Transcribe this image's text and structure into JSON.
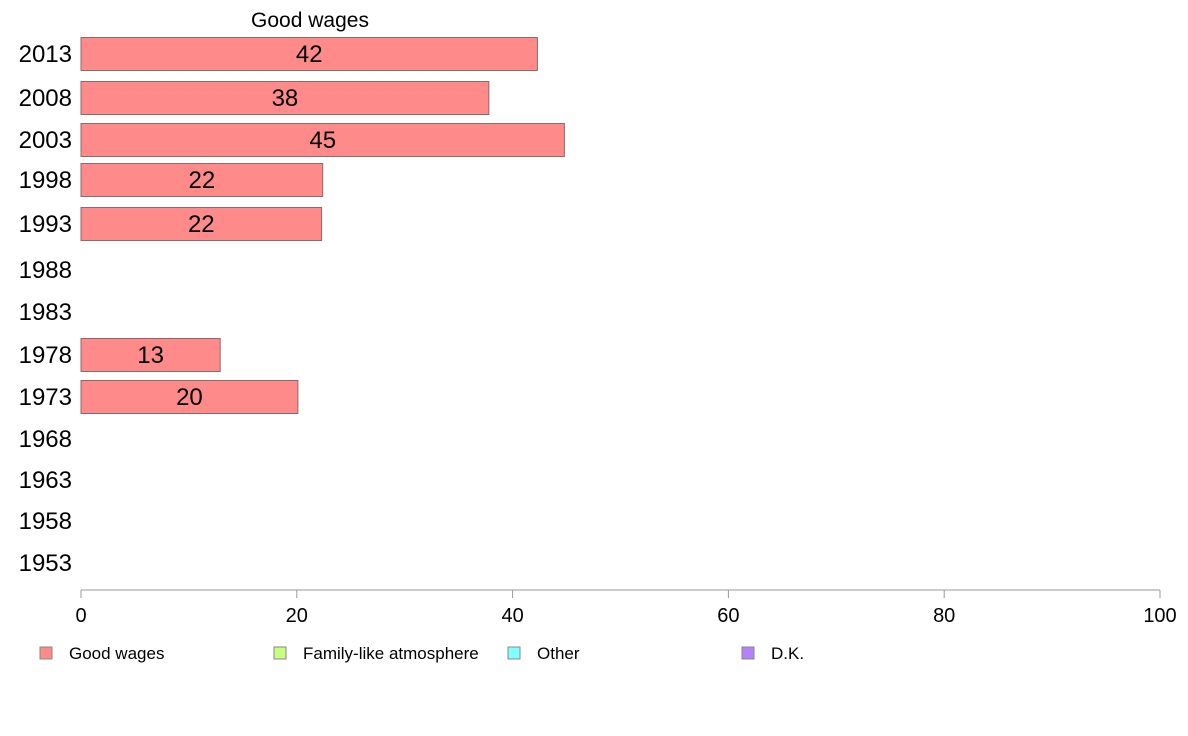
{
  "chart_data": {
    "type": "bar",
    "orientation": "horizontal",
    "title": "Good wages",
    "categories": [
      "2013",
      "2008",
      "2003",
      "1998",
      "1993",
      "1988",
      "1983",
      "1978",
      "1973",
      "1968",
      "1963",
      "1958",
      "1953"
    ],
    "series": [
      {
        "name": "Good wages",
        "values": [
          42.3,
          37.8,
          44.8,
          22.4,
          22.3,
          null,
          null,
          12.9,
          20.1,
          null,
          null,
          null,
          null
        ],
        "labels": [
          "42",
          "38",
          "45",
          "22",
          "22",
          "",
          "",
          "13",
          "20",
          "",
          "",
          "",
          ""
        ],
        "color": "#ff8a8a"
      }
    ],
    "xlim": [
      0,
      100
    ],
    "xticks": [
      "0",
      "20",
      "40",
      "60",
      "80",
      "100"
    ],
    "grid": false,
    "legend": {
      "position": "bottom",
      "items": [
        {
          "label": "Good wages",
          "color": "#ff8a8a"
        },
        {
          "label": "Family-like atmosphere",
          "color": "#c8ff80"
        },
        {
          "label": "Other",
          "color": "#80ffff"
        },
        {
          "label": "D.K.",
          "color": "#b380ff"
        }
      ]
    }
  }
}
